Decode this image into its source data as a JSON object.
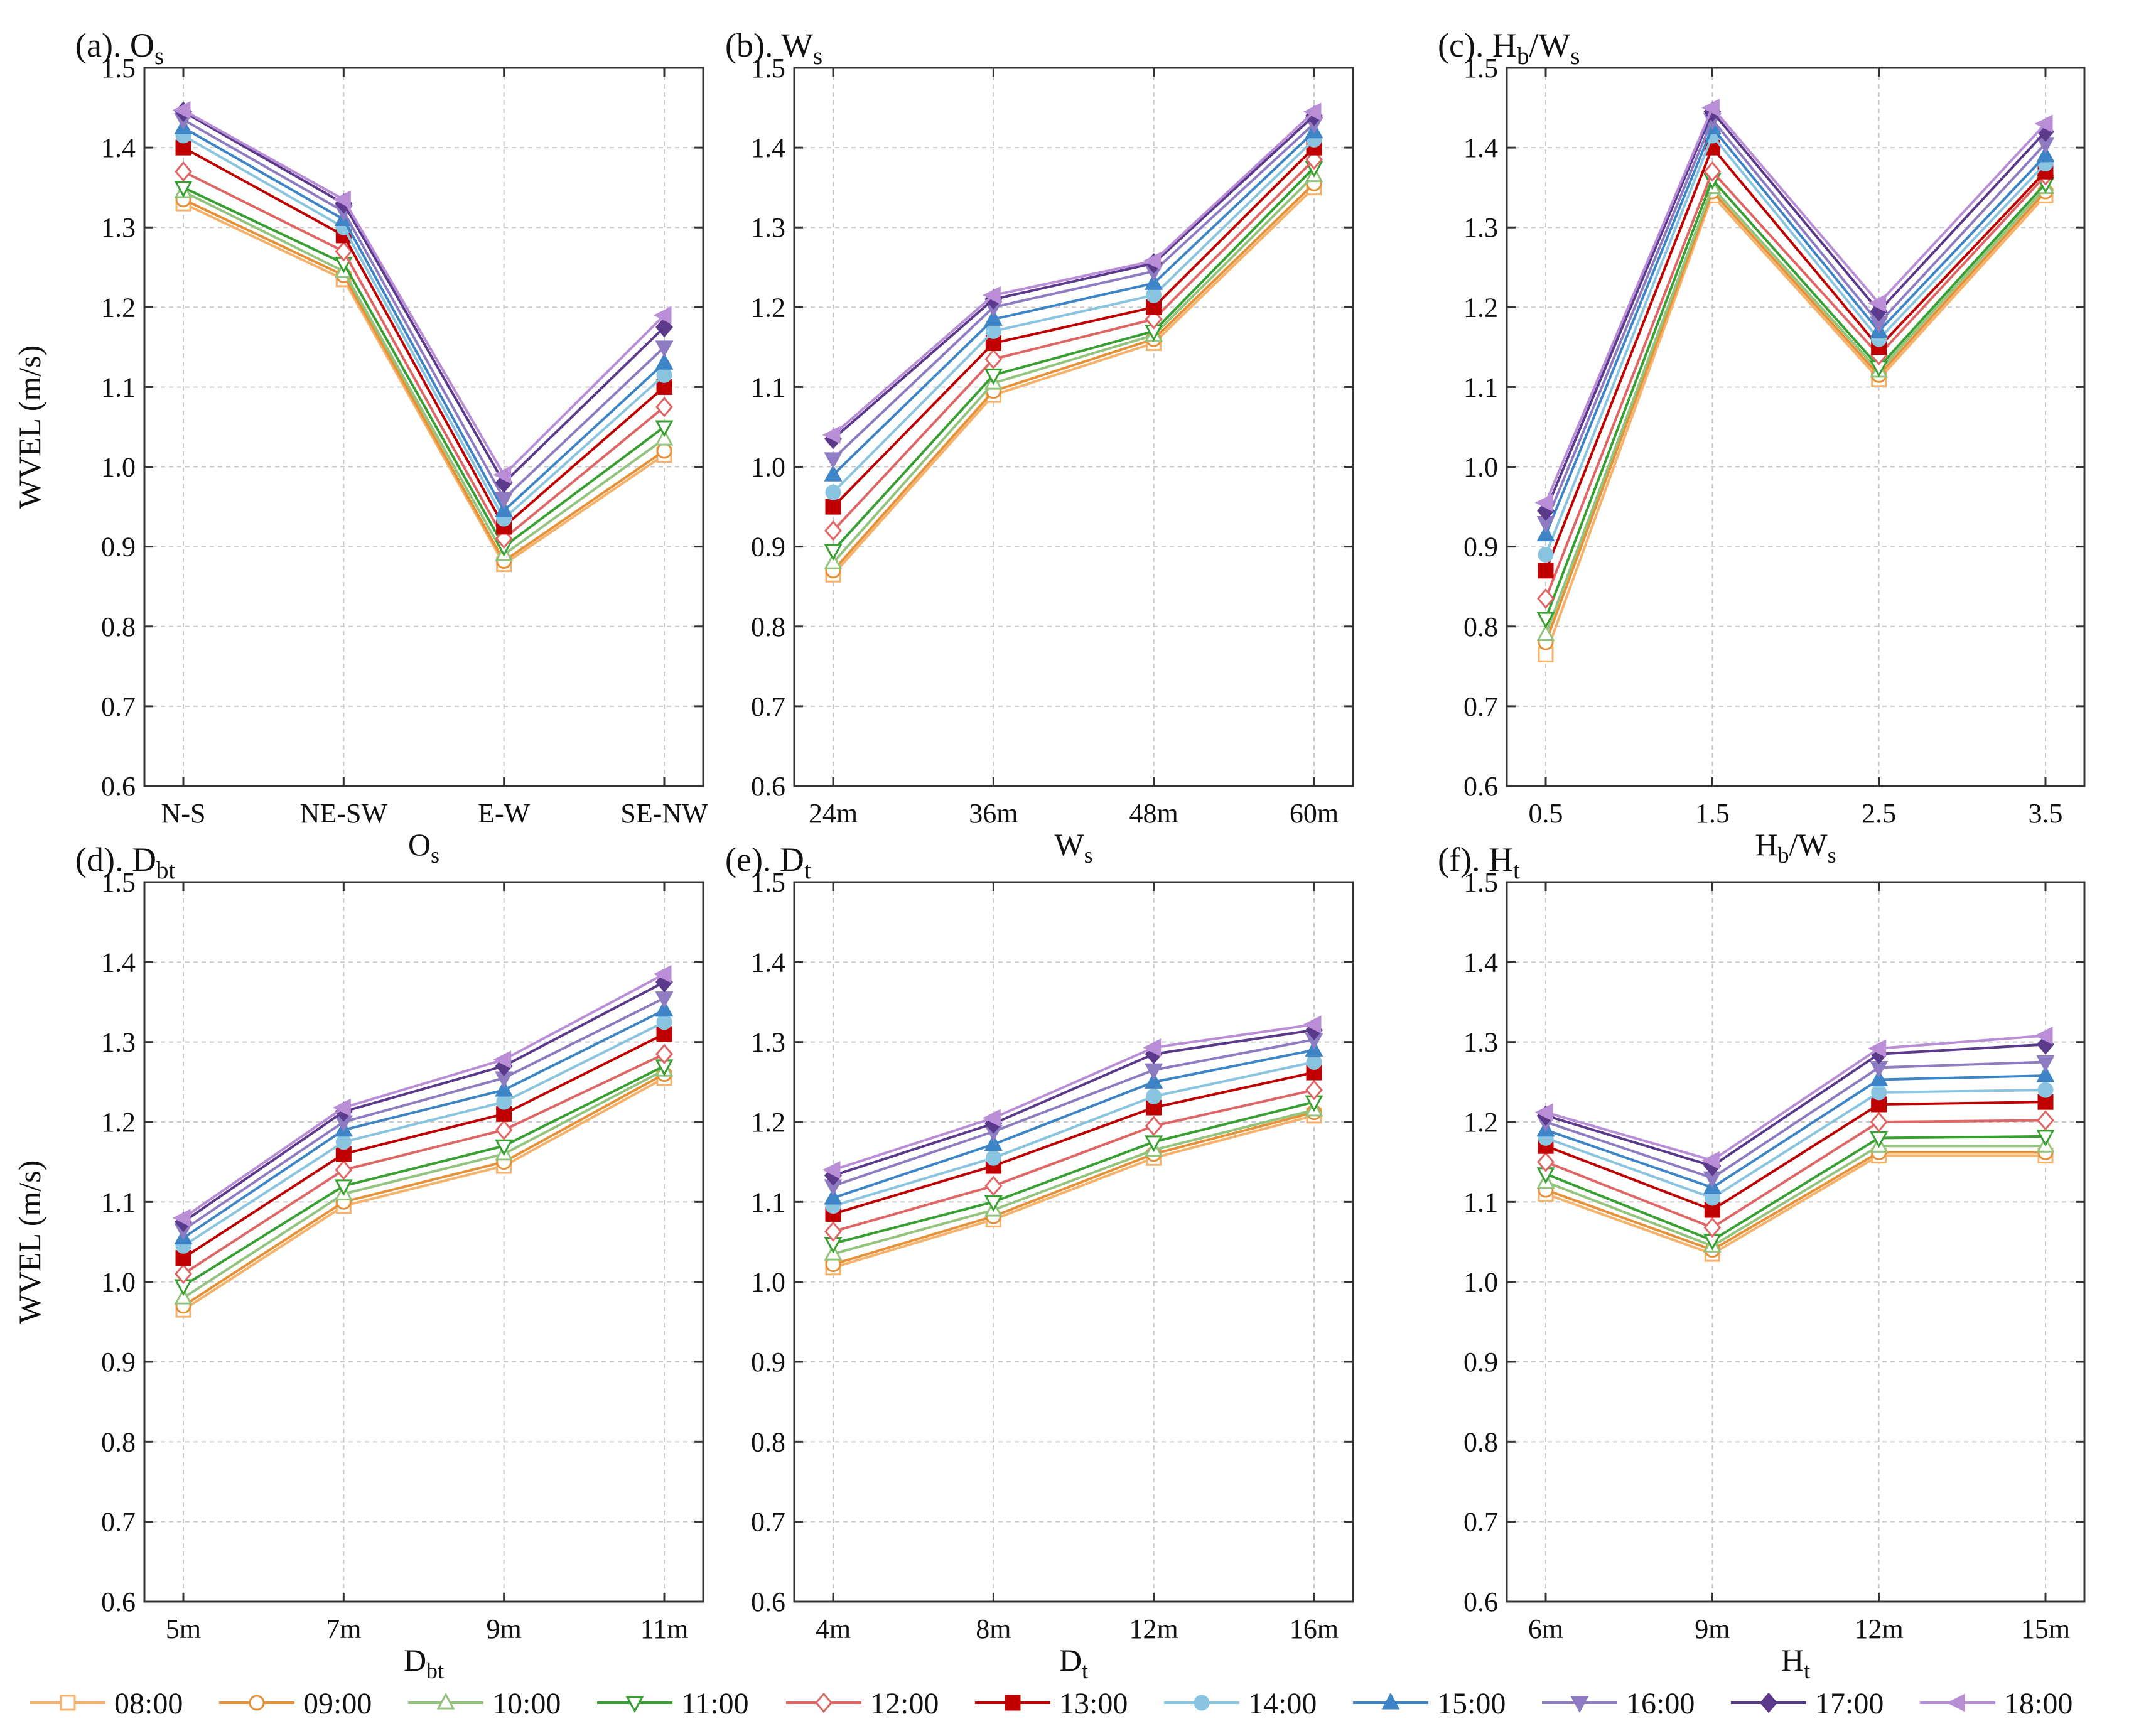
{
  "figure": {
    "ylabel": "WVEL (m/s)"
  },
  "series_style": [
    {
      "name": "08:00",
      "color": "#f6b26b",
      "marker": "square",
      "filled": false
    },
    {
      "name": "09:00",
      "color": "#e69138",
      "marker": "circle",
      "filled": false
    },
    {
      "name": "10:00",
      "color": "#93c47d",
      "marker": "triangle-up",
      "filled": false
    },
    {
      "name": "11:00",
      "color": "#38a033",
      "marker": "triangle-down",
      "filled": false
    },
    {
      "name": "12:00",
      "color": "#e06666",
      "marker": "diamond",
      "filled": false
    },
    {
      "name": "13:00",
      "color": "#c00000",
      "marker": "square",
      "filled": true
    },
    {
      "name": "14:00",
      "color": "#89c4e0",
      "marker": "circle",
      "filled": true
    },
    {
      "name": "15:00",
      "color": "#3d85c6",
      "marker": "triangle-up",
      "filled": true
    },
    {
      "name": "16:00",
      "color": "#8e7cc3",
      "marker": "triangle-down",
      "filled": true
    },
    {
      "name": "17:00",
      "color": "#5b3a8c",
      "marker": "diamond",
      "filled": true
    },
    {
      "name": "18:00",
      "color": "#b98ed6",
      "marker": "triangle-left",
      "filled": true
    }
  ],
  "chart_data": [
    {
      "type": "line",
      "panel": "(a)",
      "title_main": "(a). O",
      "title_sub": "s",
      "xlabel_main": "O",
      "xlabel_sub": "s",
      "ylabel": "WVEL (m/s)",
      "categories": [
        "N-S",
        "NE-SW",
        "E-W",
        "SE-NW"
      ],
      "ylim": [
        0.6,
        1.5
      ],
      "yticks": [
        "0.6",
        "0.7",
        "0.8",
        "0.9",
        "1.0",
        "1.1",
        "1.2",
        "1.3",
        "1.4",
        "1.5"
      ],
      "series": [
        {
          "name": "08:00",
          "values": [
            1.33,
            1.235,
            0.878,
            1.015
          ]
        },
        {
          "name": "09:00",
          "values": [
            1.335,
            1.24,
            0.882,
            1.02
          ]
        },
        {
          "name": "10:00",
          "values": [
            1.345,
            1.245,
            0.89,
            1.035
          ]
        },
        {
          "name": "11:00",
          "values": [
            1.35,
            1.255,
            0.9,
            1.05
          ]
        },
        {
          "name": "12:00",
          "values": [
            1.37,
            1.27,
            0.91,
            1.075
          ]
        },
        {
          "name": "13:00",
          "values": [
            1.4,
            1.29,
            0.925,
            1.1
          ]
        },
        {
          "name": "14:00",
          "values": [
            1.415,
            1.3,
            0.935,
            1.115
          ]
        },
        {
          "name": "15:00",
          "values": [
            1.425,
            1.31,
            0.945,
            1.13
          ]
        },
        {
          "name": "16:00",
          "values": [
            1.435,
            1.32,
            0.96,
            1.15
          ]
        },
        {
          "name": "17:00",
          "values": [
            1.445,
            1.33,
            0.98,
            1.175
          ]
        },
        {
          "name": "18:00",
          "values": [
            1.447,
            1.335,
            0.99,
            1.19
          ]
        }
      ]
    },
    {
      "type": "line",
      "panel": "(b)",
      "title_main": "(b). W",
      "title_sub": "s",
      "xlabel_main": "W",
      "xlabel_sub": "s",
      "ylabel": "",
      "categories": [
        "24m",
        "36m",
        "48m",
        "60m"
      ],
      "ylim": [
        0.6,
        1.5
      ],
      "yticks": [
        "0.6",
        "0.7",
        "0.8",
        "0.9",
        "1.0",
        "1.1",
        "1.2",
        "1.3",
        "1.4",
        "1.5"
      ],
      "series": [
        {
          "name": "08:00",
          "values": [
            0.865,
            1.09,
            1.155,
            1.35
          ]
        },
        {
          "name": "09:00",
          "values": [
            0.87,
            1.095,
            1.16,
            1.355
          ]
        },
        {
          "name": "10:00",
          "values": [
            0.88,
            1.105,
            1.165,
            1.365
          ]
        },
        {
          "name": "11:00",
          "values": [
            0.895,
            1.115,
            1.17,
            1.375
          ]
        },
        {
          "name": "12:00",
          "values": [
            0.92,
            1.135,
            1.185,
            1.385
          ]
        },
        {
          "name": "13:00",
          "values": [
            0.95,
            1.155,
            1.2,
            1.4
          ]
        },
        {
          "name": "14:00",
          "values": [
            0.968,
            1.17,
            1.215,
            1.41
          ]
        },
        {
          "name": "15:00",
          "values": [
            0.99,
            1.185,
            1.23,
            1.42
          ]
        },
        {
          "name": "16:00",
          "values": [
            1.01,
            1.2,
            1.245,
            1.43
          ]
        },
        {
          "name": "17:00",
          "values": [
            1.035,
            1.21,
            1.255,
            1.44
          ]
        },
        {
          "name": "18:00",
          "values": [
            1.04,
            1.215,
            1.258,
            1.445
          ]
        }
      ]
    },
    {
      "type": "line",
      "panel": "(c)",
      "title_main": "(c). H",
      "title_sub": "b",
      "title_main2": "/W",
      "title_sub2": "s",
      "xlabel_main": "H",
      "xlabel_sub": "b",
      "xlabel_main2": "/W",
      "xlabel_sub2": "s",
      "ylabel": "",
      "categories": [
        "0.5",
        "1.5",
        "2.5",
        "3.5"
      ],
      "ylim": [
        0.6,
        1.5
      ],
      "yticks": [
        "0.6",
        "0.7",
        "0.8",
        "0.9",
        "1.0",
        "1.1",
        "1.2",
        "1.3",
        "1.4",
        "1.5"
      ],
      "series": [
        {
          "name": "08:00",
          "values": [
            0.765,
            1.34,
            1.11,
            1.34
          ]
        },
        {
          "name": "09:00",
          "values": [
            0.78,
            1.345,
            1.115,
            1.345
          ]
        },
        {
          "name": "10:00",
          "values": [
            0.79,
            1.35,
            1.12,
            1.35
          ]
        },
        {
          "name": "11:00",
          "values": [
            0.81,
            1.36,
            1.125,
            1.355
          ]
        },
        {
          "name": "12:00",
          "values": [
            0.835,
            1.37,
            1.14,
            1.365
          ]
        },
        {
          "name": "13:00",
          "values": [
            0.87,
            1.4,
            1.15,
            1.37
          ]
        },
        {
          "name": "14:00",
          "values": [
            0.89,
            1.415,
            1.16,
            1.38
          ]
        },
        {
          "name": "15:00",
          "values": [
            0.915,
            1.425,
            1.17,
            1.39
          ]
        },
        {
          "name": "16:00",
          "values": [
            0.93,
            1.435,
            1.18,
            1.405
          ]
        },
        {
          "name": "17:00",
          "values": [
            0.945,
            1.445,
            1.195,
            1.42
          ]
        },
        {
          "name": "18:00",
          "values": [
            0.955,
            1.45,
            1.205,
            1.43
          ]
        }
      ]
    },
    {
      "type": "line",
      "panel": "(d)",
      "title_main": "(d). D",
      "title_sub": "bt",
      "xlabel_main": "D",
      "xlabel_sub": "bt",
      "ylabel": "WVEL (m/s)",
      "categories": [
        "5m",
        "7m",
        "9m",
        "11m"
      ],
      "ylim": [
        0.6,
        1.5
      ],
      "yticks": [
        "0.6",
        "0.7",
        "0.8",
        "0.9",
        "1.0",
        "1.1",
        "1.2",
        "1.3",
        "1.4",
        "1.5"
      ],
      "series": [
        {
          "name": "08:00",
          "values": [
            0.965,
            1.095,
            1.145,
            1.255
          ]
        },
        {
          "name": "09:00",
          "values": [
            0.97,
            1.1,
            1.15,
            1.26
          ]
        },
        {
          "name": "10:00",
          "values": [
            0.98,
            1.11,
            1.16,
            1.265
          ]
        },
        {
          "name": "11:00",
          "values": [
            0.995,
            1.12,
            1.17,
            1.27
          ]
        },
        {
          "name": "12:00",
          "values": [
            1.01,
            1.14,
            1.19,
            1.285
          ]
        },
        {
          "name": "13:00",
          "values": [
            1.03,
            1.16,
            1.21,
            1.31
          ]
        },
        {
          "name": "14:00",
          "values": [
            1.045,
            1.175,
            1.225,
            1.325
          ]
        },
        {
          "name": "15:00",
          "values": [
            1.055,
            1.19,
            1.24,
            1.34
          ]
        },
        {
          "name": "16:00",
          "values": [
            1.065,
            1.2,
            1.255,
            1.355
          ]
        },
        {
          "name": "17:00",
          "values": [
            1.075,
            1.213,
            1.27,
            1.375
          ]
        },
        {
          "name": "18:00",
          "values": [
            1.08,
            1.218,
            1.278,
            1.385
          ]
        }
      ]
    },
    {
      "type": "line",
      "panel": "(e)",
      "title_main": "(e). D",
      "title_sub": "t",
      "xlabel_main": "D",
      "xlabel_sub": "t",
      "ylabel": "",
      "categories": [
        "4m",
        "8m",
        "12m",
        "16m"
      ],
      "ylim": [
        0.6,
        1.5
      ],
      "yticks": [
        "0.6",
        "0.7",
        "0.8",
        "0.9",
        "1.0",
        "1.1",
        "1.2",
        "1.3",
        "1.4",
        "1.5"
      ],
      "series": [
        {
          "name": "08:00",
          "values": [
            1.018,
            1.078,
            1.155,
            1.208
          ]
        },
        {
          "name": "09:00",
          "values": [
            1.022,
            1.082,
            1.16,
            1.212
          ]
        },
        {
          "name": "10:00",
          "values": [
            1.035,
            1.09,
            1.165,
            1.215
          ]
        },
        {
          "name": "11:00",
          "values": [
            1.048,
            1.1,
            1.175,
            1.225
          ]
        },
        {
          "name": "12:00",
          "values": [
            1.063,
            1.12,
            1.195,
            1.24
          ]
        },
        {
          "name": "13:00",
          "values": [
            1.085,
            1.145,
            1.218,
            1.262
          ]
        },
        {
          "name": "14:00",
          "values": [
            1.095,
            1.155,
            1.232,
            1.275
          ]
        },
        {
          "name": "15:00",
          "values": [
            1.105,
            1.172,
            1.25,
            1.29
          ]
        },
        {
          "name": "16:00",
          "values": [
            1.12,
            1.188,
            1.265,
            1.303
          ]
        },
        {
          "name": "17:00",
          "values": [
            1.133,
            1.198,
            1.285,
            1.315
          ]
        },
        {
          "name": "18:00",
          "values": [
            1.14,
            1.205,
            1.293,
            1.322
          ]
        }
      ]
    },
    {
      "type": "line",
      "panel": "(f)",
      "title_main": "(f). H",
      "title_sub": "t",
      "xlabel_main": "H",
      "xlabel_sub": "t",
      "ylabel": "",
      "categories": [
        "6m",
        "9m",
        "12m",
        "15m"
      ],
      "ylim": [
        0.6,
        1.5
      ],
      "yticks": [
        "0.6",
        "0.7",
        "0.8",
        "0.9",
        "1.0",
        "1.1",
        "1.2",
        "1.3",
        "1.4",
        "1.5"
      ],
      "series": [
        {
          "name": "08:00",
          "values": [
            1.11,
            1.035,
            1.158,
            1.158
          ]
        },
        {
          "name": "09:00",
          "values": [
            1.115,
            1.04,
            1.162,
            1.162
          ]
        },
        {
          "name": "10:00",
          "values": [
            1.125,
            1.045,
            1.17,
            1.17
          ]
        },
        {
          "name": "11:00",
          "values": [
            1.135,
            1.052,
            1.18,
            1.182
          ]
        },
        {
          "name": "12:00",
          "values": [
            1.15,
            1.068,
            1.2,
            1.202
          ]
        },
        {
          "name": "13:00",
          "values": [
            1.17,
            1.09,
            1.222,
            1.225
          ]
        },
        {
          "name": "14:00",
          "values": [
            1.18,
            1.105,
            1.237,
            1.24
          ]
        },
        {
          "name": "15:00",
          "values": [
            1.19,
            1.118,
            1.253,
            1.258
          ]
        },
        {
          "name": "16:00",
          "values": [
            1.2,
            1.13,
            1.268,
            1.275
          ]
        },
        {
          "name": "17:00",
          "values": [
            1.208,
            1.145,
            1.285,
            1.297
          ]
        },
        {
          "name": "18:00",
          "values": [
            1.212,
            1.152,
            1.292,
            1.308
          ]
        }
      ]
    }
  ]
}
